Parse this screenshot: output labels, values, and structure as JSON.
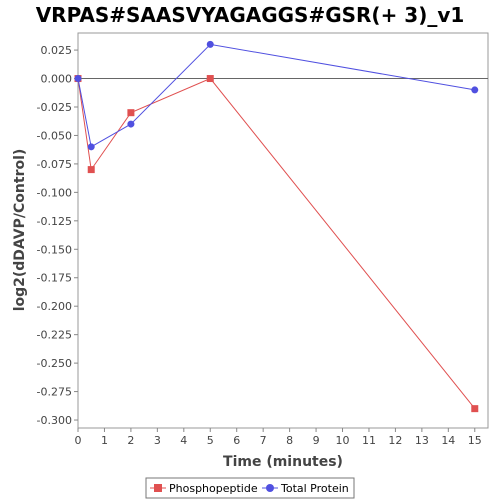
{
  "chart_data": {
    "type": "line",
    "title": "VRPAS#SAASVYAGAGGS#GSR(+ 3)_v1",
    "xlabel": "Time (minutes)",
    "ylabel": "log2(dDAVP/Control)",
    "xlim": [
      0,
      15.5
    ],
    "ylim": [
      -0.307,
      0.04
    ],
    "xticks": [
      0,
      1,
      2,
      3,
      4,
      5,
      6,
      7,
      8,
      9,
      10,
      11,
      12,
      13,
      14,
      15
    ],
    "yticks": [
      0.025,
      0.0,
      -0.025,
      -0.05,
      -0.075,
      -0.1,
      -0.125,
      -0.15,
      -0.175,
      -0.2,
      -0.225,
      -0.25,
      -0.275,
      -0.3
    ],
    "ytick_labels": [
      "0.025",
      "0.000",
      "-0.025",
      "-0.050",
      "-0.075",
      "-0.100",
      "-0.125",
      "-0.150",
      "-0.175",
      "-0.200",
      "-0.225",
      "-0.250",
      "-0.275",
      "-0.300"
    ],
    "zero_line": true,
    "grid": false,
    "legend_position": "bottom",
    "series": [
      {
        "name": "Phosphopeptide",
        "color": "#e05050",
        "marker": "square",
        "x": [
          0,
          0.5,
          2,
          5,
          15
        ],
        "y": [
          0.0,
          -0.08,
          -0.03,
          0.0,
          -0.29
        ]
      },
      {
        "name": "Total Protein",
        "color": "#5050e0",
        "marker": "circle",
        "x": [
          0,
          0.5,
          2,
          5,
          15
        ],
        "y": [
          0.0,
          -0.06,
          -0.04,
          0.03,
          -0.01
        ]
      }
    ]
  }
}
